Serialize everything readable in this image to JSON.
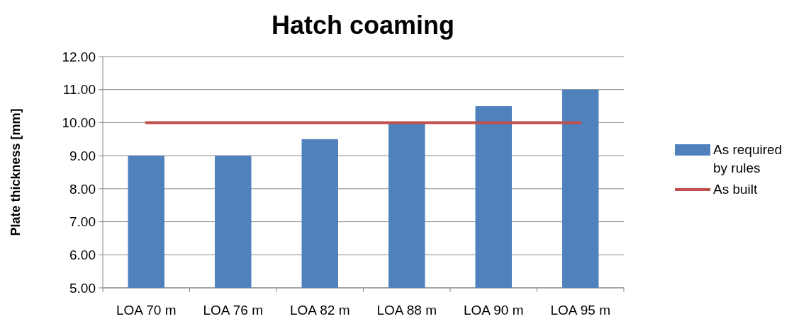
{
  "chart_data": {
    "type": "bar",
    "title": "Hatch coaming",
    "ylabel": "Plate thickness [mm]",
    "categories": [
      "LOA 70 m",
      "LOA 76 m",
      "LOA 82 m",
      "LOA 88 m",
      "LOA 90 m",
      "LOA 95 m"
    ],
    "series": [
      {
        "name": "As required by rules",
        "color": "#4f81bd",
        "values": [
          9,
          9,
          9.5,
          10,
          10.5,
          11
        ]
      },
      {
        "name": "As built",
        "type": "line",
        "color": "#c0504d",
        "values": [
          10,
          10,
          10,
          10,
          10,
          10
        ]
      }
    ],
    "ylim": [
      5,
      12
    ],
    "yticks": [
      {
        "value": 5,
        "label": "5.00"
      },
      {
        "value": 6,
        "label": "6.00"
      },
      {
        "value": 7,
        "label": "7.00"
      },
      {
        "value": 8,
        "label": "8.00"
      },
      {
        "value": 9,
        "label": "9.00"
      },
      {
        "value": 10,
        "label": "10.00"
      },
      {
        "value": 11,
        "label": "11.00"
      },
      {
        "value": 12,
        "label": "12.00"
      }
    ],
    "grid": "y",
    "legend": "right"
  }
}
